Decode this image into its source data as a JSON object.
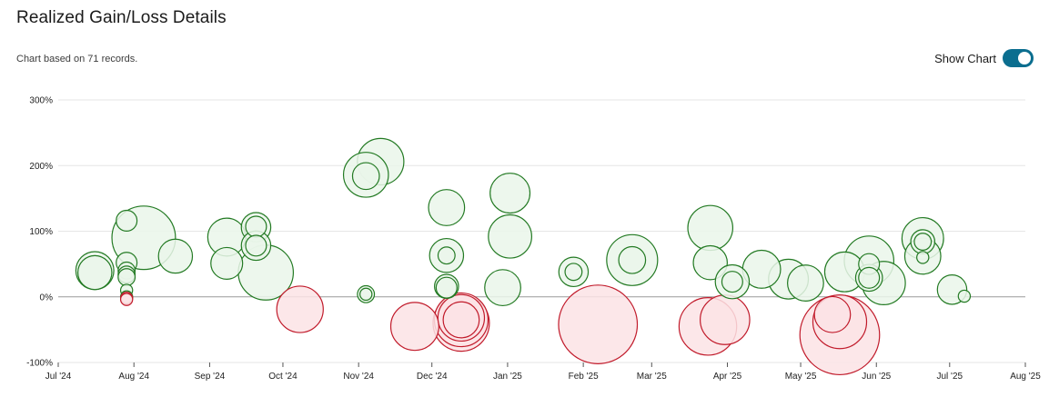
{
  "header": {
    "title": "Realized Gain/Loss Details",
    "subtitle": "Chart based on 71 records."
  },
  "toggle": {
    "label": "Show Chart",
    "on": true
  },
  "colors": {
    "gain_fill": "#eaf6ea",
    "gain_stroke": "#237a23",
    "loss_fill": "#fbe3e5",
    "loss_stroke": "#c11b2b",
    "toggle": "#0b6e8f",
    "grid": "#e6e6e6",
    "zero_line": "#9a9a9a"
  },
  "chart_data": {
    "type": "scatter",
    "xlabel": "",
    "ylabel": "",
    "x_ticks": [
      "Jul '24",
      "Aug '24",
      "Sep '24",
      "Oct '24",
      "Nov '24",
      "Dec '24",
      "Jan '25",
      "Feb '25",
      "Mar '25",
      "Apr '25",
      "May '25",
      "Jun '25",
      "Jul '25",
      "Aug '25"
    ],
    "xlim": [
      "2024-07-01",
      "2025-08-01"
    ],
    "y_ticks": [
      "300%",
      "200%",
      "100%",
      "0%",
      "-100%"
    ],
    "ylim": [
      -100,
      300
    ],
    "grid": true,
    "size_encoding": "bubble area",
    "points": [
      {
        "date": "2024-07-16",
        "y": 40,
        "size": 10
      },
      {
        "date": "2024-07-16",
        "y": 37,
        "size": 8
      },
      {
        "date": "2024-07-29",
        "y": 116,
        "size": 3
      },
      {
        "date": "2024-07-29",
        "y": 52,
        "size": 3
      },
      {
        "date": "2024-07-29",
        "y": 40,
        "size": 2
      },
      {
        "date": "2024-07-29",
        "y": 34,
        "size": 2
      },
      {
        "date": "2024-07-29",
        "y": 30,
        "size": 2
      },
      {
        "date": "2024-07-29",
        "y": 10,
        "size": 1
      },
      {
        "date": "2024-07-29",
        "y": 0,
        "size": 1
      },
      {
        "date": "2024-07-29",
        "y": -2,
        "size": 1
      },
      {
        "date": "2024-07-29",
        "y": -4,
        "size": 1
      },
      {
        "date": "2024-08-05",
        "y": 90,
        "size": 28
      },
      {
        "date": "2024-08-18",
        "y": 62,
        "size": 8
      },
      {
        "date": "2024-09-08",
        "y": 91,
        "size": 10
      },
      {
        "date": "2024-09-08",
        "y": 51,
        "size": 7
      },
      {
        "date": "2024-09-20",
        "y": 106,
        "size": 6
      },
      {
        "date": "2024-09-20",
        "y": 107,
        "size": 3
      },
      {
        "date": "2024-09-20",
        "y": 78,
        "size": 6
      },
      {
        "date": "2024-09-20",
        "y": 78,
        "size": 3
      },
      {
        "date": "2024-09-24",
        "y": 37,
        "size": 21
      },
      {
        "date": "2024-10-08",
        "y": -19,
        "size": 15
      },
      {
        "date": "2024-11-04",
        "y": 186,
        "size": 14
      },
      {
        "date": "2024-11-04",
        "y": 184,
        "size": 5
      },
      {
        "date": "2024-11-10",
        "y": 206,
        "size": 15
      },
      {
        "date": "2024-11-04",
        "y": 4,
        "size": 2
      },
      {
        "date": "2024-11-04",
        "y": 4,
        "size": 1
      },
      {
        "date": "2024-11-24",
        "y": -45,
        "size": 16
      },
      {
        "date": "2024-12-07",
        "y": 136,
        "size": 9
      },
      {
        "date": "2024-12-07",
        "y": 63,
        "size": 8
      },
      {
        "date": "2024-12-07",
        "y": 63,
        "size": 2
      },
      {
        "date": "2024-12-07",
        "y": 16,
        "size": 4
      },
      {
        "date": "2024-12-07",
        "y": 14,
        "size": 3
      },
      {
        "date": "2024-12-13",
        "y": -35,
        "size": 20
      },
      {
        "date": "2024-12-13",
        "y": -32,
        "size": 15
      },
      {
        "date": "2024-12-13",
        "y": -40,
        "size": 22
      },
      {
        "date": "2024-12-13",
        "y": -35,
        "size": 9
      },
      {
        "date": "2025-01-02",
        "y": 158,
        "size": 11
      },
      {
        "date": "2025-01-02",
        "y": 92,
        "size": 13
      },
      {
        "date": "2024-12-30",
        "y": 14,
        "size": 9
      },
      {
        "date": "2025-01-28",
        "y": 38,
        "size": 6
      },
      {
        "date": "2025-01-28",
        "y": 38,
        "size": 2
      },
      {
        "date": "2025-02-07",
        "y": -42,
        "size": 43
      },
      {
        "date": "2025-02-21",
        "y": 56,
        "size": 18
      },
      {
        "date": "2025-02-21",
        "y": 56,
        "size": 5
      },
      {
        "date": "2025-03-25",
        "y": 105,
        "size": 14
      },
      {
        "date": "2025-03-25",
        "y": 52,
        "size": 8
      },
      {
        "date": "2025-03-24",
        "y": -45,
        "size": 23
      },
      {
        "date": "2025-03-31",
        "y": -35,
        "size": 17
      },
      {
        "date": "2025-04-03",
        "y": 23,
        "size": 8
      },
      {
        "date": "2025-04-03",
        "y": 23,
        "size": 3
      },
      {
        "date": "2025-04-15",
        "y": 42,
        "size": 10
      },
      {
        "date": "2025-04-26",
        "y": 27,
        "size": 11
      },
      {
        "date": "2025-05-03",
        "y": 21,
        "size": 9
      },
      {
        "date": "2025-05-14",
        "y": -27,
        "size": 9
      },
      {
        "date": "2025-05-17",
        "y": -38,
        "size": 20
      },
      {
        "date": "2025-05-17",
        "y": -58,
        "size": 44
      },
      {
        "date": "2025-05-19",
        "y": 38,
        "size": 11
      },
      {
        "date": "2025-05-29",
        "y": 55,
        "size": 17
      },
      {
        "date": "2025-05-29",
        "y": 50,
        "size": 3
      },
      {
        "date": "2025-05-29",
        "y": 29,
        "size": 5
      },
      {
        "date": "2025-05-29",
        "y": 29,
        "size": 3
      },
      {
        "date": "2025-06-04",
        "y": 21,
        "size": 13
      },
      {
        "date": "2025-06-20",
        "y": 89,
        "size": 12
      },
      {
        "date": "2025-06-20",
        "y": 84,
        "size": 4
      },
      {
        "date": "2025-06-20",
        "y": 84,
        "size": 2
      },
      {
        "date": "2025-06-20",
        "y": 62,
        "size": 9
      },
      {
        "date": "2025-06-20",
        "y": 60,
        "size": 1
      },
      {
        "date": "2025-07-02",
        "y": 11,
        "size": 6
      },
      {
        "date": "2025-07-07",
        "y": 1,
        "size": 1
      }
    ]
  }
}
